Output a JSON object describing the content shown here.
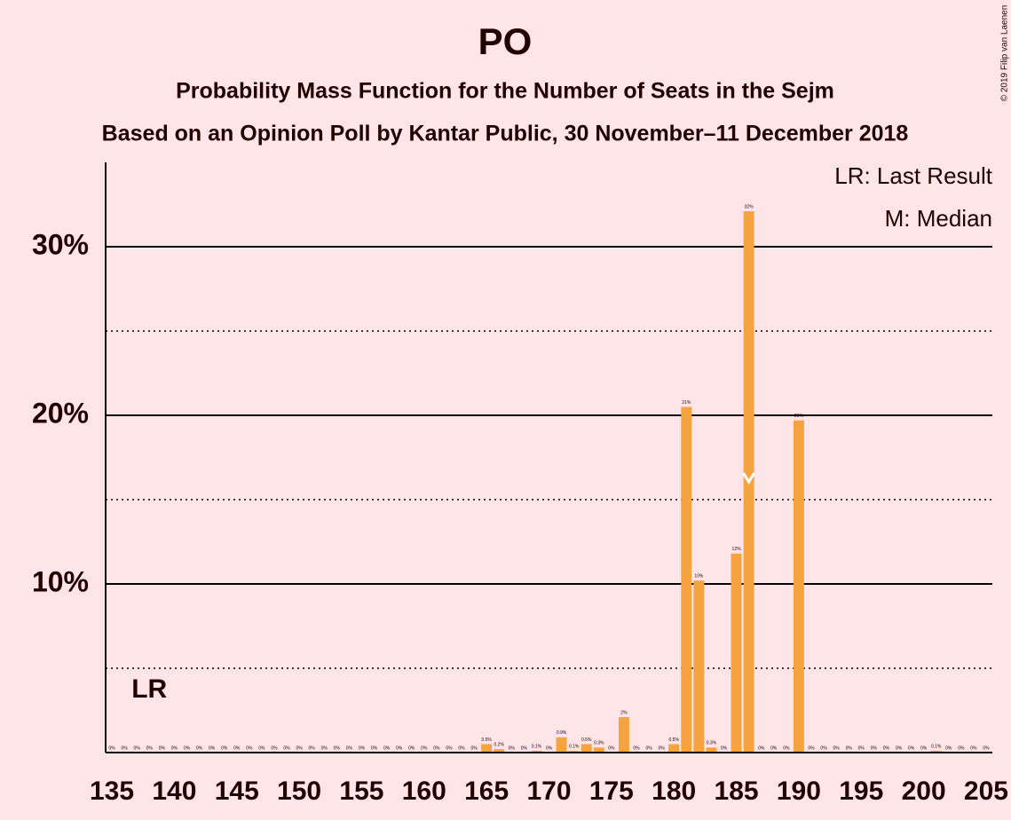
{
  "chart_data": {
    "type": "bar",
    "title": "PO",
    "subtitle": "Probability Mass Function for the Number of Seats in the Sejm",
    "subtitle2": "Based on an Opinion Poll by Kantar Public, 30 November–11 December 2018",
    "copyright": "© 2019 Filip van Laenen",
    "legend": [
      "LR: Last Result",
      "M: Median"
    ],
    "legend_position": "upper right",
    "last_result": {
      "x": 138,
      "label": "LR"
    },
    "median": 186,
    "color": "#f5a340",
    "x": [
      135,
      136,
      137,
      138,
      139,
      140,
      141,
      142,
      143,
      144,
      145,
      146,
      147,
      148,
      149,
      150,
      151,
      152,
      153,
      154,
      155,
      156,
      157,
      158,
      159,
      160,
      161,
      162,
      163,
      164,
      165,
      166,
      167,
      168,
      169,
      170,
      171,
      172,
      173,
      174,
      175,
      176,
      177,
      178,
      179,
      180,
      181,
      182,
      183,
      184,
      185,
      186,
      187,
      188,
      189,
      190,
      191,
      192,
      193,
      194,
      195,
      196,
      197,
      198,
      199,
      200,
      201,
      202,
      203,
      204,
      205
    ],
    "values": [
      0,
      0,
      0,
      0,
      0,
      0,
      0,
      0,
      0,
      0,
      0,
      0,
      0,
      0,
      0,
      0,
      0,
      0,
      0,
      0,
      0,
      0,
      0,
      0,
      0,
      0,
      0,
      0,
      0,
      0,
      0.5,
      0.2,
      0,
      0,
      0.1,
      0,
      0.9,
      0.1,
      0.5,
      0.3,
      0,
      2.1,
      0,
      0,
      0,
      0.5,
      20.5,
      10.2,
      0.3,
      0,
      11.8,
      32.1,
      0,
      0,
      0,
      19.7,
      0,
      0,
      0,
      0,
      0,
      0,
      0,
      0,
      0,
      0,
      0.1,
      0,
      0,
      0,
      0
    ],
    "value_labels": [
      "0%",
      "0%",
      "0%",
      "0%",
      "0%",
      "0%",
      "0%",
      "0%",
      "0%",
      "0%",
      "0%",
      "0%",
      "0%",
      "0%",
      "0%",
      "0%",
      "0%",
      "0%",
      "0%",
      "0%",
      "0%",
      "0%",
      "0%",
      "0%",
      "0%",
      "0%",
      "0%",
      "0%",
      "0%",
      "0%",
      "0.5%",
      "0.2%",
      "0%",
      "0%",
      "0.1%",
      "0%",
      "0.9%",
      "0.1%",
      "0.5%",
      "0.3%",
      "0%",
      "2%",
      "0%",
      "0%",
      "0%",
      "0.5%",
      "21%",
      "10%",
      "0.3%",
      "0%",
      "12%",
      "32%",
      "0%",
      "0%",
      "0%",
      "20%",
      "0%",
      "0%",
      "0%",
      "0%",
      "0%",
      "0%",
      "0%",
      "0%",
      "0%",
      "0%",
      "0.1%",
      "0%",
      "0%",
      "0%",
      "0%"
    ],
    "xlim": [
      134.5,
      205.5
    ],
    "xticks": [
      135,
      140,
      145,
      150,
      155,
      160,
      165,
      170,
      175,
      180,
      185,
      190,
      195,
      200,
      205
    ],
    "ylim": [
      0,
      35
    ],
    "yticks": [
      {
        "value": 10,
        "label": "10%"
      },
      {
        "value": 20,
        "label": "20%"
      },
      {
        "value": 30,
        "label": "30%"
      }
    ],
    "minor_yticks": [
      5,
      15,
      25
    ],
    "grid": true
  }
}
